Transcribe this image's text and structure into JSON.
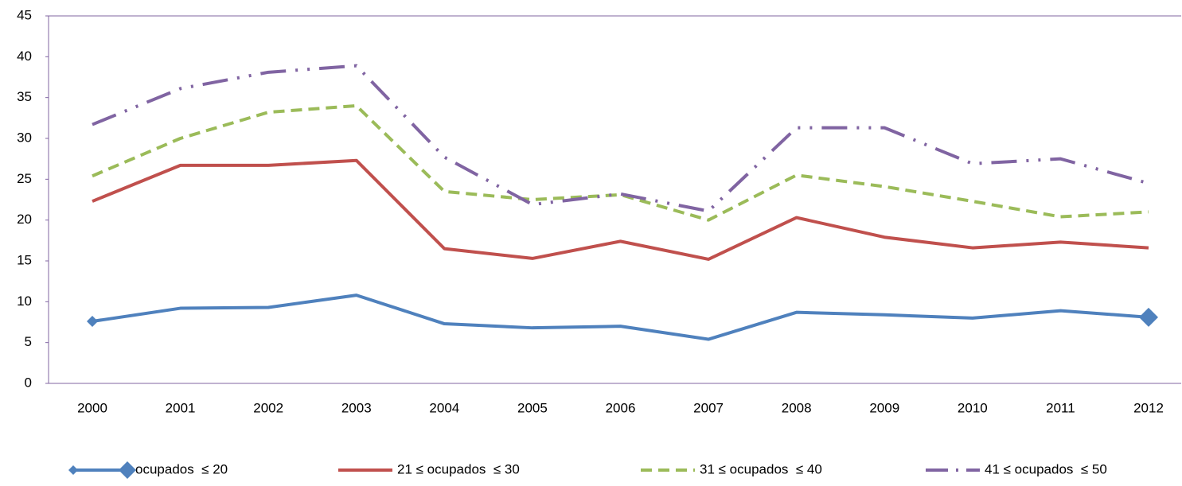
{
  "chart_data": {
    "type": "line",
    "categories": [
      "2000",
      "2001",
      "2002",
      "2003",
      "2004",
      "2005",
      "2006",
      "2007",
      "2008",
      "2009",
      "2010",
      "2011",
      "2012"
    ],
    "series": [
      {
        "name": "ocupados  ≤ 20",
        "color": "#4f81bd",
        "style": "solid",
        "marker": "diamond",
        "values": [
          7.6,
          9.2,
          9.3,
          10.8,
          7.3,
          6.8,
          7.0,
          5.4,
          8.7,
          8.4,
          8.0,
          8.9,
          8.1
        ]
      },
      {
        "name": "21 ≤ ocupados  ≤ 30",
        "color": "#c0504d",
        "style": "solid",
        "values": [
          22.3,
          26.7,
          26.7,
          27.3,
          16.5,
          15.3,
          17.4,
          15.2,
          20.3,
          17.9,
          16.6,
          17.3,
          16.6
        ]
      },
      {
        "name": "31 ≤ ocupados  ≤ 40",
        "color": "#9bbb59",
        "style": "dashed",
        "values": [
          25.4,
          30.0,
          33.2,
          34.0,
          23.5,
          22.5,
          23.1,
          20.0,
          25.5,
          24.1,
          22.3,
          20.4,
          21.0
        ]
      },
      {
        "name": "41 ≤ ocupados  ≤ 50",
        "color": "#8064a2",
        "style": "dash-dot-dot",
        "values": [
          31.7,
          36.1,
          38.1,
          38.9,
          27.7,
          21.9,
          23.2,
          21.1,
          31.3,
          31.3,
          26.9,
          27.5,
          24.5
        ]
      }
    ],
    "ylim": [
      0,
      45
    ],
    "yticks": [
      0,
      5,
      10,
      15,
      20,
      25,
      30,
      35,
      40,
      45
    ],
    "grid": false,
    "legend": "bottom"
  }
}
